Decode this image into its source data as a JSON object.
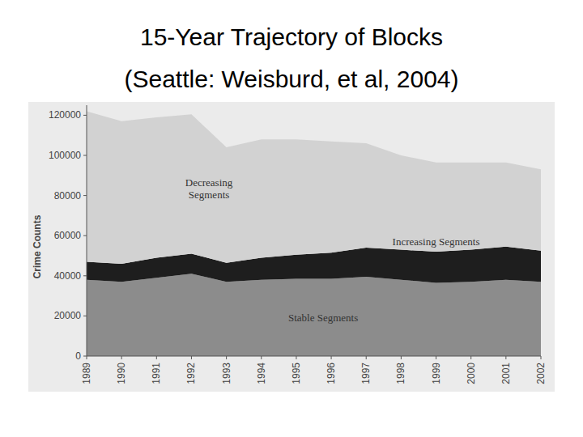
{
  "chart_data": {
    "type": "area",
    "stacked": true,
    "title": "15-Year Trajectory of Blocks",
    "subtitle": "(Seattle: Weisburd, et al, 2004)",
    "y_label": "Crime Counts",
    "x": [
      1989,
      1990,
      1991,
      1992,
      1993,
      1994,
      1995,
      1996,
      1997,
      1998,
      1999,
      2000,
      2001,
      2002
    ],
    "xlim": [
      1989,
      2002
    ],
    "xticks": [
      1989,
      1990,
      1991,
      1992,
      1993,
      1994,
      1995,
      1996,
      1997,
      1998,
      1999,
      2000,
      2001,
      2002
    ],
    "ylim": [
      0,
      125000
    ],
    "yticks": [
      0,
      20000,
      40000,
      60000,
      80000,
      100000,
      120000
    ],
    "grid": false,
    "series": [
      {
        "name": "Stable Segments",
        "color": "#8c8c8c",
        "values": [
          38000,
          37000,
          39000,
          41000,
          37000,
          38000,
          38500,
          38500,
          39500,
          38000,
          36500,
          37000,
          38000,
          37000
        ]
      },
      {
        "name": "Increasing Segments",
        "color": "#1e1e1e",
        "values": [
          9000,
          9000,
          10000,
          10000,
          9500,
          11000,
          12000,
          13000,
          14500,
          15000,
          15500,
          16000,
          16500,
          15500
        ]
      },
      {
        "name": "Decreasing Segments",
        "color": "#d2d2d2",
        "values": [
          75000,
          71000,
          70000,
          69500,
          57500,
          59000,
          57500,
          55500,
          52000,
          47000,
          44500,
          43500,
          42000,
          40500
        ]
      }
    ]
  }
}
